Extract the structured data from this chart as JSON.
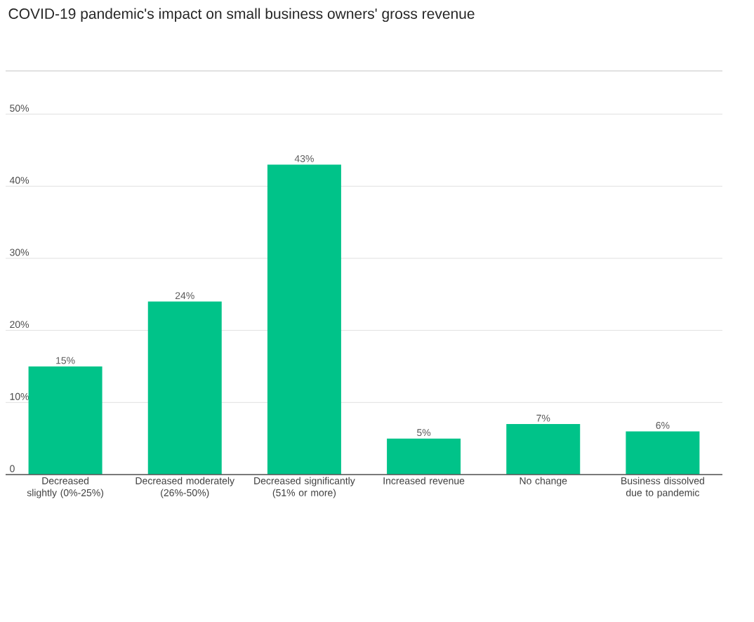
{
  "chart_data": {
    "type": "bar",
    "title": "COVID-19 pandemic's impact on small business owners' gross revenue",
    "categories": [
      "Decreased slightly (0%-25%)",
      "Decreased moderately (26%-50%)",
      "Decreased significantly (51% or more)",
      "Increased revenue",
      "No change",
      "Business dissolved due to pandemic"
    ],
    "values": [
      15,
      24,
      43,
      5,
      7,
      6
    ],
    "value_labels": [
      "15%",
      "24%",
      "43%",
      "5%",
      "7%",
      "6%"
    ],
    "color": "#00c389",
    "ylim": [
      0,
      56
    ],
    "yticks": [
      0,
      {
        "value": 10,
        "label": "10%"
      },
      {
        "value": 20,
        "label": "20%"
      },
      {
        "value": 30,
        "label": "30%"
      },
      {
        "value": 40,
        "label": "40%"
      },
      {
        "value": 50,
        "label": "50%"
      }
    ],
    "grid": "y"
  }
}
